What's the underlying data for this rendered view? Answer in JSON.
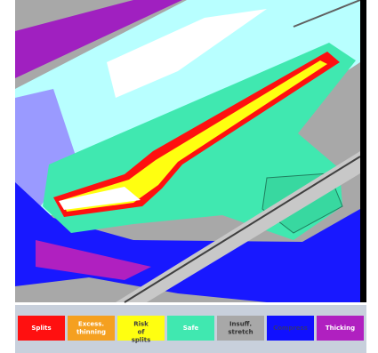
{
  "legend": {
    "items": [
      {
        "label": "Splits",
        "color": "#ff1010",
        "text_color": "#ffffff"
      },
      {
        "label": "Excess. thinning",
        "color": "#f5a020",
        "text_color": "#ffffff"
      },
      {
        "label": "Risk of splits",
        "color": "#ffff10",
        "text_color": "#404040"
      },
      {
        "label": "Safe",
        "color": "#40e8b0",
        "text_color": "#ffffff"
      },
      {
        "label": "Insuff. stretch",
        "color": "#a8a8a8",
        "text_color": "#303030"
      },
      {
        "label": "Compress",
        "color": "#1010ff",
        "text_color": "#303080"
      },
      {
        "label": "Thicking",
        "color": "#b020c0",
        "text_color": "#ffffff"
      }
    ]
  }
}
